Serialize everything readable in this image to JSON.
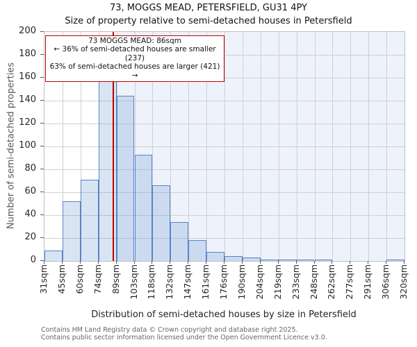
{
  "chart_data": {
    "type": "bar",
    "title": "73, MOGGS MEAD, PETERSFIELD, GU31 4PY",
    "subtitle": "Size of property relative to semi-detached houses in Petersfield",
    "xlabel": "Distribution of semi-detached houses by size in Petersfield",
    "ylabel": "Number of semi-detached properties",
    "bin_edges_sqm": [
      31,
      45,
      60,
      74,
      89,
      103,
      118,
      132,
      147,
      161,
      176,
      190,
      204,
      219,
      233,
      248,
      262,
      277,
      291,
      306,
      320
    ],
    "x_tick_labels": [
      "31sqm",
      "45sqm",
      "60sqm",
      "74sqm",
      "89sqm",
      "103sqm",
      "118sqm",
      "132sqm",
      "147sqm",
      "161sqm",
      "176sqm",
      "190sqm",
      "204sqm",
      "219sqm",
      "233sqm",
      "248sqm",
      "262sqm",
      "277sqm",
      "291sqm",
      "306sqm",
      "320sqm"
    ],
    "values": [
      9,
      52,
      71,
      159,
      144,
      93,
      66,
      34,
      18,
      8,
      4,
      3,
      1,
      1,
      1,
      1,
      0,
      0,
      0,
      1
    ],
    "y_ticks": [
      0,
      20,
      40,
      60,
      80,
      100,
      120,
      140,
      160,
      180,
      200
    ],
    "ylim": [
      0,
      200
    ],
    "grid": true,
    "marker_value_sqm": 86,
    "shade_from_sqm": 89,
    "annotation": {
      "line1": "73 MOGGS MEAD: 86sqm",
      "line2": "← 36% of semi-detached houses are smaller (237)",
      "line3": "63% of semi-detached houses are larger (421) →"
    },
    "colors": {
      "bar_fill": "#d9e2f3",
      "bar_edge": "#5585c6",
      "marker_line": "#c00000",
      "annotation_border": "#c00000",
      "shade": "#eef2fb",
      "gridline": "#d0d0d0"
    }
  },
  "footer": {
    "line1": "Contains HM Land Registry data © Crown copyright and database right 2025.",
    "line2": "Contains public sector information licensed under the Open Government Licence v3.0."
  }
}
